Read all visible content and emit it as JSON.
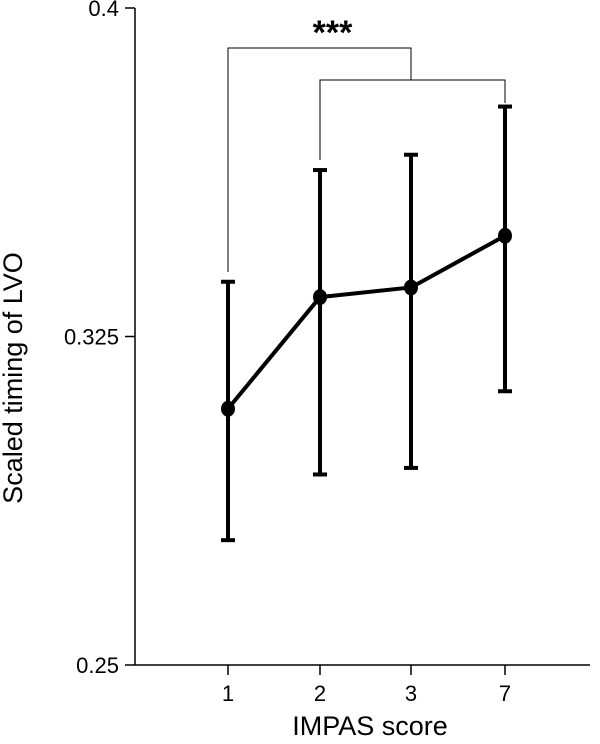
{
  "chart_data": {
    "type": "line",
    "title": "",
    "xlabel": "IMPAS score",
    "ylabel": "Scaled timing of LVO",
    "categories": [
      "1",
      "2",
      "3",
      "7"
    ],
    "ylim": [
      0.25,
      0.4
    ],
    "yticks": [
      0.25,
      0.325,
      0.4
    ],
    "ytick_labels": [
      "0.25",
      "0.325",
      "0.4"
    ],
    "series": [
      {
        "values": [
          0.3085,
          0.334,
          0.3362,
          0.348
        ],
        "error_low": [
          0.2785,
          0.2935,
          0.295,
          0.3125
        ],
        "error_high": [
          0.3375,
          0.363,
          0.3665,
          0.3775
        ]
      }
    ],
    "significance": [
      {
        "label": "***",
        "bracket_from": 0,
        "bracket_to": 2
      },
      {
        "label": "",
        "bracket_from": 1,
        "bracket_to": 3
      }
    ],
    "grid": false,
    "legend": "none"
  },
  "colors": {
    "ink": "#000000",
    "background": "#ffffff"
  }
}
